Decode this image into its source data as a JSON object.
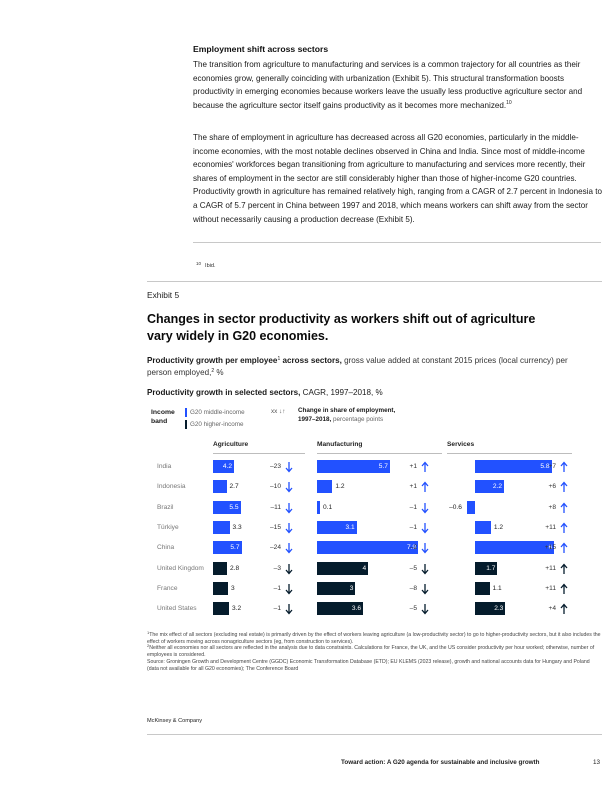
{
  "article": {
    "section_title": "Employment shift across sectors",
    "para1": "The transition from agriculture to manufacturing and services is a common trajectory for all countries as their economies grow, generally coinciding with urbanization (Exhibit 5). This structural transformation boosts productivity in emerging economies because workers leave the usually less productive agriculture sector and because the agriculture sector itself gains productivity as it becomes more mechanized.",
    "para1_sup": "10",
    "para2": "The share of employment in agriculture has decreased across all G20 economies, particularly in the middle-income economies, with the most notable declines observed in China and India. Since most of middle-income economies' workforces began transitioning from agriculture to manufacturing and services more recently, their shares of employment in the sector are still considerably higher than those of higher-income G20 countries. Productivity growth in agriculture has remained relatively high, ranging from a CAGR of 2.7 percent in Indonesia to a CAGR of 5.7 percent in China between 1997 and 2018, which means workers can shift away from the sector without necessarily causing a production decrease (Exhibit 5).",
    "footnote_num": "10",
    "footnote_text": "Ibid."
  },
  "exhibit": {
    "label": "Exhibit 5",
    "title": "Changes in sector productivity as workers shift out of agriculture vary widely in G20 economies.",
    "subtitle_bold": "Productivity growth per employee",
    "subtitle_sup1": "1",
    "subtitle_bold2": " across sectors,",
    "subtitle_light": " gross value added at constant 2015 prices (local currency) per person employed,",
    "subtitle_sup2": "2",
    "subtitle_end": " %",
    "chart_title_bold": "Productivity growth in selected sectors,",
    "chart_title_light": " CAGR, 1997–2018, %",
    "legend": {
      "income_band_label": "Income band",
      "middle": "G20 middle-income",
      "higher": "G20 higher-income",
      "change_symbol": "xx ↓↑",
      "change_label_bold": "Change in share of employment,",
      "change_label_bold2": "1997–2018,",
      "change_label_light": " percentage points"
    },
    "notes": {
      "n1_sup": "1",
      "n1": "The mix effect of all sectors (excluding real estate) is primarily driven by the effect of workers leaving agriculture (a low-productivity sector) to go to higher-productivity sectors, but it also includes the effect of workers moving across nonagriculture sectors (eg, from construction to services).",
      "n2_sup": "2",
      "n2": "Neither all economies nor all sectors are reflected in the analysis due to data constraints. Calculations for France, the UK, and the US consider productivity per hour worked; otherwise, number of employees is considered.",
      "source": "Source: Groningen Growth and Development Centre (GGDC) Economic Transformation Database (ETD); EU KLEMS (2023 release), growth and national accounts data for Hungary and Poland (data not available for all G20 economies); The Conference Board"
    }
  },
  "chart_data": {
    "type": "bar",
    "title": "Productivity growth in selected sectors, CAGR, 1997–2018, %",
    "categories": [
      "India",
      "Indonesia",
      "Brazil",
      "Türkiye",
      "China",
      "United Kingdom",
      "France",
      "United States"
    ],
    "income_band": [
      "middle",
      "middle",
      "middle",
      "middle",
      "middle",
      "higher",
      "higher",
      "higher"
    ],
    "series": [
      {
        "name": "Agriculture",
        "values": [
          4.2,
          2.7,
          5.5,
          3.3,
          5.7,
          2.8,
          3,
          3.2
        ],
        "change_labels": [
          "–23",
          "–10",
          "–11",
          "–15",
          "–24",
          "–3",
          "–1",
          "–1"
        ],
        "change_values": [
          -23,
          -10,
          -11,
          -15,
          -24,
          -3,
          -1,
          -1
        ]
      },
      {
        "name": "Manufacturing",
        "values": [
          5.7,
          1.2,
          0.1,
          3.1,
          7.9,
          4,
          3,
          3.6
        ],
        "change_labels": [
          "+1",
          "+1",
          "–1",
          "–1",
          "–2",
          "–5",
          "–8",
          "–5"
        ],
        "change_values": [
          1,
          1,
          -1,
          -1,
          -2,
          -5,
          -8,
          -5
        ]
      },
      {
        "name": "Services",
        "values": [
          5.8,
          2.2,
          -0.6,
          1.2,
          6,
          1.7,
          1.1,
          2.3
        ],
        "change_labels": [
          "+7",
          "+6",
          "+8",
          "+11",
          "+15",
          "+11",
          "+11",
          "+4"
        ],
        "change_values": [
          7,
          6,
          8,
          11,
          15,
          11,
          11,
          4
        ]
      }
    ],
    "value_labels": [
      [
        "4.2",
        "2.7",
        "5.5",
        "3.3",
        "5.7",
        "2.8",
        "3",
        "3.2"
      ],
      [
        "5.7",
        "1.2",
        "0.1",
        "3.1",
        "7.9",
        "4",
        "3",
        "3.6"
      ],
      [
        "5.8",
        "2.2",
        "–0.6",
        "1.2",
        "6",
        "1.7",
        "1.1",
        "2.3"
      ]
    ],
    "colors": {
      "middle": "#2251ff",
      "higher": "#051c2c",
      "arrow_middle": "#2251ff",
      "arrow_higher": "#051c2c"
    }
  },
  "page": {
    "brand": "McKinsey & Company",
    "footer": "Toward action: A G20 agenda for sustainable and inclusive growth",
    "page_number": "13"
  }
}
